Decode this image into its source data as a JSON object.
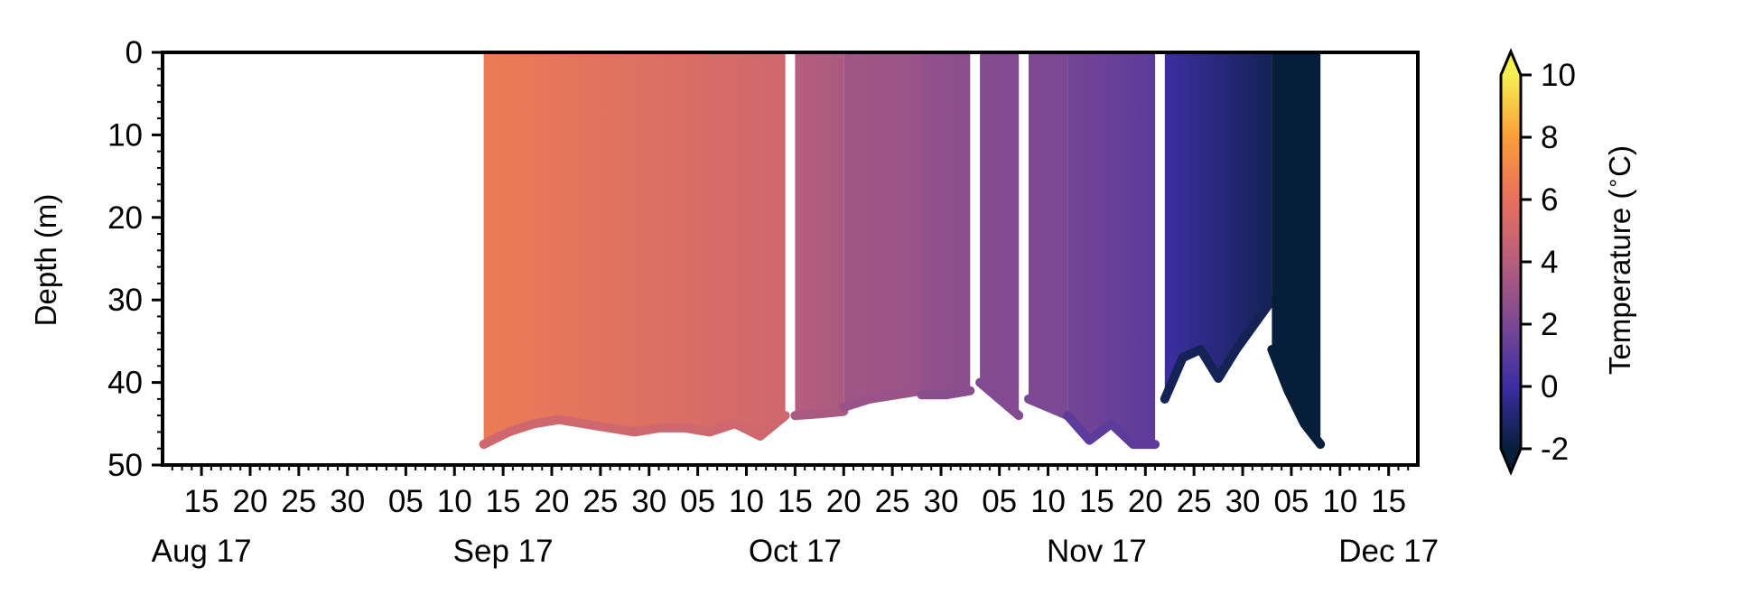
{
  "chart_data": {
    "type": "heatmap",
    "title": "",
    "ylabel": "Depth (m)",
    "xlabel": "",
    "ylim": [
      50,
      0
    ],
    "y_ticks": [
      0,
      10,
      20,
      30,
      40,
      50
    ],
    "x_range": [
      "2017-08-11",
      "2017-12-18"
    ],
    "x_day_ticks": [
      {
        "date": "2017-08-15",
        "label": "15"
      },
      {
        "date": "2017-08-20",
        "label": "20"
      },
      {
        "date": "2017-08-25",
        "label": "25"
      },
      {
        "date": "2017-08-30",
        "label": "30"
      },
      {
        "date": "2017-09-05",
        "label": "05"
      },
      {
        "date": "2017-09-10",
        "label": "10"
      },
      {
        "date": "2017-09-15",
        "label": "15"
      },
      {
        "date": "2017-09-20",
        "label": "20"
      },
      {
        "date": "2017-09-25",
        "label": "25"
      },
      {
        "date": "2017-09-30",
        "label": "30"
      },
      {
        "date": "2017-10-05",
        "label": "05"
      },
      {
        "date": "2017-10-10",
        "label": "10"
      },
      {
        "date": "2017-10-15",
        "label": "15"
      },
      {
        "date": "2017-10-20",
        "label": "20"
      },
      {
        "date": "2017-10-25",
        "label": "25"
      },
      {
        "date": "2017-10-30",
        "label": "30"
      },
      {
        "date": "2017-11-05",
        "label": "05"
      },
      {
        "date": "2017-11-10",
        "label": "10"
      },
      {
        "date": "2017-11-15",
        "label": "15"
      },
      {
        "date": "2017-11-20",
        "label": "20"
      },
      {
        "date": "2017-11-25",
        "label": "25"
      },
      {
        "date": "2017-11-30",
        "label": "30"
      },
      {
        "date": "2017-12-05",
        "label": "05"
      },
      {
        "date": "2017-12-10",
        "label": "10"
      },
      {
        "date": "2017-12-15",
        "label": "15"
      }
    ],
    "x_month_ticks": [
      {
        "date": "2017-08-15",
        "label": "Aug 17"
      },
      {
        "date": "2017-09-15",
        "label": "Sep 17"
      },
      {
        "date": "2017-10-15",
        "label": "Oct 17"
      },
      {
        "date": "2017-11-15",
        "label": "Nov 17"
      },
      {
        "date": "2017-12-15",
        "label": "Dec 17"
      }
    ],
    "colorbar": {
      "label": "Temperature ($^\\circ$C)",
      "range": [
        -2,
        10
      ],
      "ticks": [
        -2,
        0,
        2,
        4,
        6,
        8,
        10
      ],
      "extend": "both",
      "colormap": [
        "#071e3b",
        "#3c2ea2",
        "#7b4893",
        "#b65e7d",
        "#e7705e",
        "#fa9d3a",
        "#f7ef52"
      ]
    },
    "data_segments": [
      {
        "start": "2017-09-13",
        "end": "2017-10-14",
        "depths": [
          47.5,
          46,
          45,
          44.5,
          45,
          45.5,
          46,
          45.5,
          45.5,
          46,
          45,
          46.5,
          44
        ],
        "top_temp": 6.5,
        "bottom_temp": 5.0
      },
      {
        "start": "2017-10-15",
        "end": "2017-10-20",
        "depths": [
          44,
          43.8,
          43.5
        ],
        "top_temp": 4.0,
        "bottom_temp": 3.6
      },
      {
        "start": "2017-10-20",
        "end": "2017-10-28",
        "depths": [
          43,
          42,
          41.5,
          41
        ],
        "top_temp": 3.3,
        "bottom_temp": 3.0
      },
      {
        "start": "2017-10-28",
        "end": "2017-11-02",
        "depths": [
          41.5,
          41.5,
          41
        ],
        "top_temp": 2.8,
        "bottom_temp": 2.5
      },
      {
        "start": "2017-11-03",
        "end": "2017-11-07",
        "depths": [
          40,
          42,
          44
        ],
        "top_temp": 2.3,
        "bottom_temp": 2.2
      },
      {
        "start": "2017-11-08",
        "end": "2017-11-12",
        "depths": [
          42,
          43,
          44
        ],
        "top_temp": 2.1,
        "bottom_temp": 2.0
      },
      {
        "start": "2017-11-12",
        "end": "2017-11-21",
        "depths": [
          44,
          47,
          45,
          47.5,
          47.5
        ],
        "top_temp": 1.8,
        "bottom_temp": 1.0
      },
      {
        "start": "2017-11-22",
        "end": "2017-12-03",
        "depths": [
          42,
          37,
          36,
          39.5,
          36,
          33,
          30
        ],
        "top_temp": 0.0,
        "bottom_temp": -1.5
      },
      {
        "start": "2017-12-03",
        "end": "2017-12-08",
        "depths": [
          36,
          41,
          45,
          47.5
        ],
        "top_temp": -2.0,
        "bottom_temp": -2.0
      }
    ]
  }
}
